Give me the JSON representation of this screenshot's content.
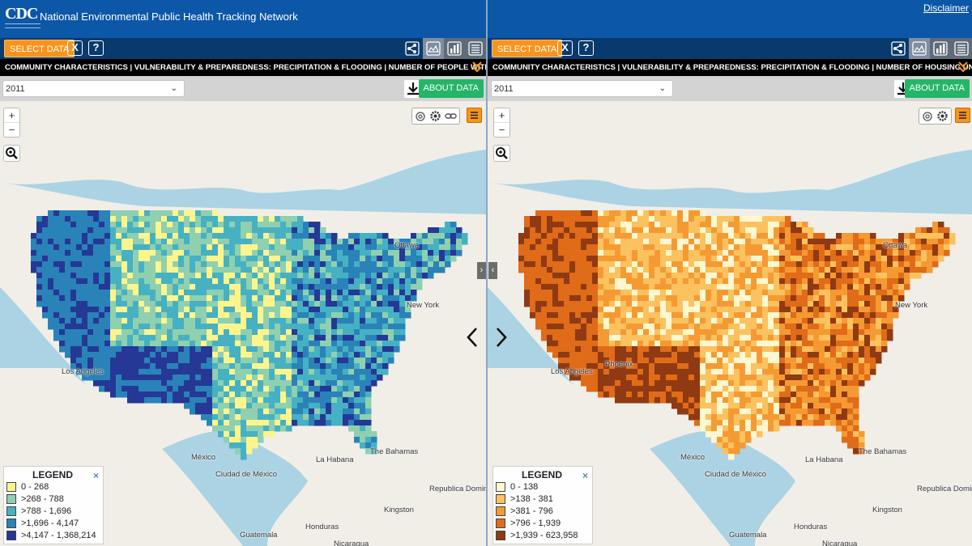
{
  "header": {
    "logo": "CDC",
    "title": "National Environmental Public Health Tracking Network",
    "disclaimer": "Disclaimer"
  },
  "colors": {
    "header_blue": "#0c57a8",
    "toolbar_blue": "#093a6e",
    "select_orange": "#f7941d",
    "about_green": "#25b568",
    "water": "#abd3e4",
    "land": "#f1eee8"
  },
  "panels": [
    {
      "select_label": "SELECT DATA",
      "close_label": "X",
      "help_label": "?",
      "breadcrumb": "COMMUNITY CHARACTERISTICS | VULNERABILITY & PREPAREDNESS: PRECIPITATION & FLOODING | NUMBER OF PEOPLE WITHIN FEMA DE...",
      "year": "2011",
      "about_label": "ABOUT DATA",
      "zoom_in": "+",
      "zoom_out": "−",
      "legend": {
        "title": "LEGEND",
        "close": "×",
        "items": [
          {
            "label": "0 - 268",
            "color": "#fdf58c"
          },
          {
            "label": ">268 - 788",
            "color": "#8fd0b0"
          },
          {
            "label": ">788 - 1,696",
            "color": "#46b1c2"
          },
          {
            "label": ">1,696 - 4,147",
            "color": "#2a83b8"
          },
          {
            "label": ">4,147 - 1,368,214",
            "color": "#253895"
          }
        ]
      },
      "cities": [
        "Ottawa",
        "New York",
        "Los Angeles",
        "México",
        "La Habana",
        "The Bahamas",
        "Ciudad de México",
        "Kingston",
        "Guatemala",
        "Honduras",
        "Nicaragua",
        "Republica Dominicana"
      ]
    },
    {
      "select_label": "SELECT DATA",
      "close_label": "X",
      "help_label": "?",
      "breadcrumb": "COMMUNITY CHARACTERISTICS | VULNERABILITY & PREPAREDNESS: PRECIPITATION & FLOODING | NUMBER OF HOUSING UNITS WITHIN F...",
      "year": "2011",
      "about_label": "ABOUT DATA",
      "zoom_in": "+",
      "zoom_out": "−",
      "legend": {
        "title": "LEGEND",
        "close": "×",
        "items": [
          {
            "label": "0 - 138",
            "color": "#fff7d0"
          },
          {
            "label": ">138 - 381",
            "color": "#fbc25f"
          },
          {
            "label": ">381 - 796",
            "color": "#f59a32"
          },
          {
            "label": ">796 - 1,939",
            "color": "#e06b18"
          },
          {
            "label": ">1,939 - 623,958",
            "color": "#8f3a12"
          }
        ]
      },
      "cities": [
        "Ottawa",
        "New York",
        "Los Angeles",
        "Phoenix",
        "México",
        "La Habana",
        "The Bahamas",
        "Ciudad de México",
        "Kingston",
        "Guatemala",
        "Honduras",
        "Nicaragua",
        "Republica Dominicana"
      ]
    }
  ],
  "nav": {
    "prev": "‹",
    "next": "›",
    "collapse_left": "›",
    "collapse_right": "‹"
  }
}
